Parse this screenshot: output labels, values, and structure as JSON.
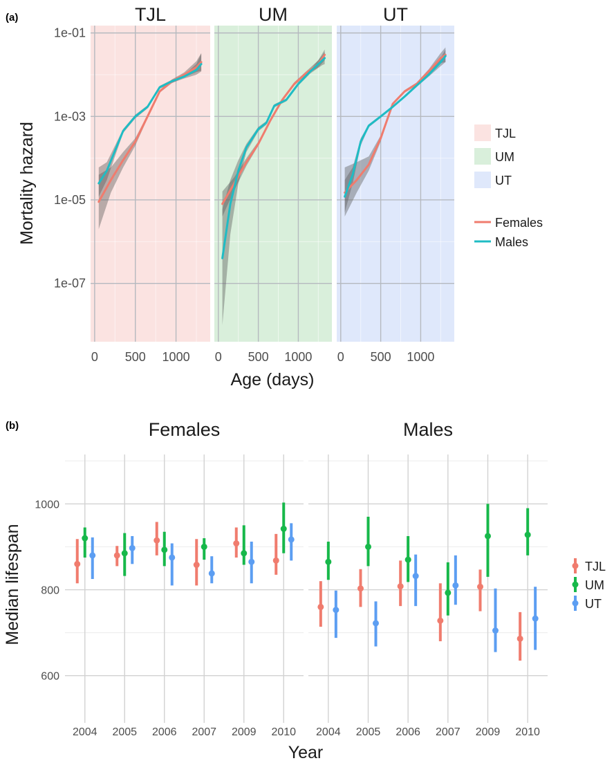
{
  "chart_data": [
    {
      "panel_label": "(a)",
      "type": "line",
      "facets": [
        "TJL",
        "UM",
        "UT"
      ],
      "xlabel": "Age (days)",
      "ylabel": "Mortality hazard",
      "y_scale": "log10",
      "ylim": [
        4e-09,
        0.15
      ],
      "xlim": [
        -50,
        1420
      ],
      "x_ticks": [
        0,
        500,
        1000
      ],
      "x_tick_labels": [
        "0",
        "500",
        "1000"
      ],
      "y_ticks": [
        1e-07,
        1e-05,
        0.001,
        0.1
      ],
      "y_tick_labels": [
        "1e-07",
        "1e-05",
        "1e-03",
        "1e-01"
      ],
      "grid": true,
      "facet_colors": {
        "TJL": "#fbe3e1",
        "UM": "#d9efdb",
        "UT": "#dfe8fb"
      },
      "series_colors": {
        "Females": "#f07c6e",
        "Males": "#1fbcc4"
      },
      "legend_fill": {
        "placement": "right",
        "entries": [
          {
            "label": "TJL",
            "color": "#fbe3e1"
          },
          {
            "label": "UM",
            "color": "#d9efdb"
          },
          {
            "label": "UT",
            "color": "#dfe8fb"
          }
        ]
      },
      "legend_lines": {
        "placement": "right",
        "entries": [
          {
            "label": "Females",
            "color": "#f07c6e"
          },
          {
            "label": "Males",
            "color": "#1fbcc4"
          }
        ]
      },
      "panels": [
        {
          "facet": "TJL",
          "series": [
            {
              "name": "Females",
              "x": [
                50,
                200,
                350,
                500,
                650,
                800,
                950,
                1100,
                1250,
                1310
              ],
              "y": [
                9e-06,
                3e-05,
                9e-05,
                0.00025,
                0.001,
                0.004,
                0.007,
                0.01,
                0.015,
                0.02
              ],
              "lower": [
                2e-06,
                1.5e-05,
                6e-05,
                0.0002,
                0.0009,
                0.0037,
                0.0063,
                0.0087,
                0.0115,
                0.0125
              ],
              "upper": [
                4e-05,
                6e-05,
                0.00014,
                0.0003,
                0.0011,
                0.0043,
                0.0077,
                0.0113,
                0.021,
                0.033
              ]
            },
            {
              "name": "Males",
              "x": [
                50,
                150,
                250,
                350,
                500,
                650,
                800,
                950,
                1100,
                1250,
                1310
              ],
              "y": [
                2.5e-05,
                5e-05,
                0.00015,
                0.00045,
                0.001,
                0.0017,
                0.005,
                0.007,
                0.009,
                0.013,
                0.018
              ],
              "lower": [
                1.2e-05,
                3e-05,
                0.00011,
                0.0004,
                0.0009,
                0.00155,
                0.0046,
                0.0064,
                0.0081,
                0.01,
                0.012
              ],
              "upper": [
                6e-05,
                8e-05,
                0.0002,
                0.0005,
                0.0011,
                0.00185,
                0.0054,
                0.0076,
                0.0099,
                0.018,
                0.032
              ]
            }
          ]
        },
        {
          "facet": "UM",
          "series": [
            {
              "name": "Females",
              "x": [
                50,
                200,
                350,
                500,
                650,
                800,
                950,
                1100,
                1250,
                1330
              ],
              "y": [
                8e-06,
                2.5e-05,
                8e-05,
                0.00022,
                0.0008,
                0.0025,
                0.006,
                0.011,
                0.018,
                0.03
              ],
              "lower": [
                4e-06,
                1.7e-05,
                6.5e-05,
                0.0002,
                0.00074,
                0.0023,
                0.0055,
                0.0099,
                0.015,
                0.022
              ],
              "upper": [
                1.6e-05,
                3.5e-05,
                0.0001,
                0.00025,
                0.00087,
                0.0027,
                0.0066,
                0.0121,
                0.022,
                0.04
              ]
            },
            {
              "name": "Males",
              "x": [
                50,
                150,
                250,
                350,
                500,
                600,
                700,
                850,
                1000,
                1150,
                1300,
                1330
              ],
              "y": [
                4e-07,
                8e-06,
                5e-05,
                0.00018,
                0.0005,
                0.0007,
                0.0018,
                0.0025,
                0.006,
                0.012,
                0.022,
                0.025
              ],
              "lower": [
                1e-08,
                1.5e-06,
                2.5e-05,
                0.00014,
                0.00044,
                0.00063,
                0.00165,
                0.0023,
                0.0055,
                0.0107,
                0.017,
                0.018
              ],
              "upper": [
                6e-06,
                3e-05,
                9e-05,
                0.00022,
                0.00056,
                0.00077,
                0.00195,
                0.0027,
                0.0065,
                0.0133,
                0.029,
                0.035
              ]
            }
          ]
        },
        {
          "facet": "UT",
          "series": [
            {
              "name": "Females",
              "x": [
                50,
                200,
                350,
                500,
                650,
                800,
                950,
                1100,
                1250,
                1310
              ],
              "y": [
                1.5e-05,
                3e-05,
                7e-05,
                0.0003,
                0.002,
                0.004,
                0.006,
                0.012,
                0.025,
                0.03
              ],
              "lower": [
                4e-06,
                1.5e-05,
                5e-05,
                0.00025,
                0.00185,
                0.0037,
                0.0055,
                0.0105,
                0.019,
                0.02
              ],
              "upper": [
                6e-05,
                8e-05,
                0.00011,
                0.00035,
                0.00215,
                0.0043,
                0.0065,
                0.0135,
                0.033,
                0.045
              ]
            },
            {
              "name": "Males",
              "x": [
                50,
                150,
                250,
                350,
                500,
                650,
                800,
                950,
                1100,
                1250,
                1310
              ],
              "y": [
                1.2e-05,
                4e-05,
                0.00025,
                0.0006,
                0.001,
                0.0017,
                0.003,
                0.0055,
                0.01,
                0.02,
                0.028
              ],
              "lower": [
                5e-06,
                2.5e-05,
                0.0002,
                0.00055,
                0.00093,
                0.0016,
                0.0028,
                0.0051,
                0.009,
                0.016,
                0.02
              ],
              "upper": [
                3e-05,
                6e-05,
                0.0003,
                0.00065,
                0.00107,
                0.0018,
                0.0032,
                0.0059,
                0.011,
                0.025,
                0.04
              ]
            }
          ]
        }
      ]
    },
    {
      "panel_label": "(b)",
      "type": "scatter",
      "facets": [
        "Females",
        "Males"
      ],
      "xlabel": "Year",
      "ylabel": "Median lifespan",
      "categories": [
        "2004",
        "2005",
        "2006",
        "2007",
        "2009",
        "2010"
      ],
      "ylim": [
        490,
        1115
      ],
      "y_ticks": [
        600,
        800,
        1000
      ],
      "y_tick_labels": [
        "600",
        "800",
        "1000"
      ],
      "grid": true,
      "legend": {
        "placement": "right",
        "entries": [
          {
            "label": "TJL",
            "color": "#f07c6e"
          },
          {
            "label": "UM",
            "color": "#17b84a"
          },
          {
            "label": "UT",
            "color": "#5c9ef2"
          }
        ]
      },
      "panels": [
        {
          "facet": "Females",
          "series": [
            {
              "name": "TJL",
              "values": [
                860,
                880,
                915,
                858,
                908,
                868
              ],
              "lower": [
                815,
                855,
                880,
                810,
                875,
                835
              ],
              "upper": [
                918,
                902,
                958,
                918,
                945,
                930
              ]
            },
            {
              "name": "UM",
              "values": [
                920,
                885,
                893,
                900,
                885,
                942
              ],
              "lower": [
                875,
                832,
                855,
                870,
                858,
                885
              ],
              "upper": [
                945,
                932,
                935,
                920,
                950,
                1003
              ]
            },
            {
              "name": "UT",
              "values": [
                880,
                897,
                875,
                838,
                865,
                917
              ],
              "lower": [
                825,
                860,
                810,
                815,
                815,
                868
              ],
              "upper": [
                922,
                925,
                908,
                878,
                912,
                955
              ]
            }
          ]
        },
        {
          "facet": "Males",
          "series": [
            {
              "name": "TJL",
              "values": [
                760,
                803,
                808,
                728,
                807,
                686
              ],
              "lower": [
                714,
                760,
                762,
                680,
                750,
                635
              ],
              "upper": [
                820,
                848,
                868,
                815,
                847,
                748
              ]
            },
            {
              "name": "UM",
              "values": [
                865,
                900,
                870,
                793,
                925,
                928
              ],
              "lower": [
                823,
                855,
                818,
                740,
                830,
                880
              ],
              "upper": [
                912,
                970,
                925,
                864,
                1000,
                990
              ]
            },
            {
              "name": "UT",
              "values": [
                753,
                722,
                832,
                810,
                705,
                733
              ],
              "lower": [
                688,
                668,
                762,
                765,
                655,
                660
              ],
              "upper": [
                798,
                773,
                882,
                880,
                803,
                807
              ]
            }
          ]
        }
      ]
    }
  ]
}
